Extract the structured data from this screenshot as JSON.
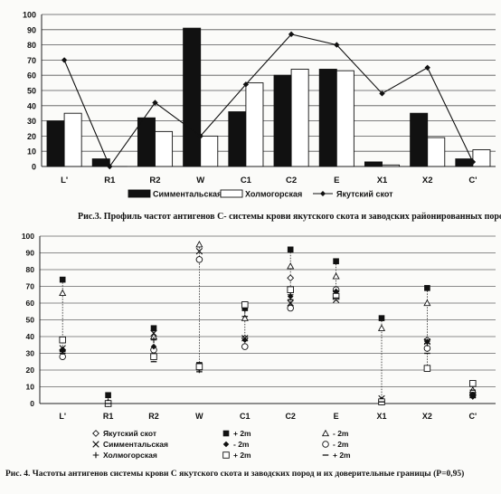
{
  "captions": {
    "fig3": "Рис.3. Профиль частот антигенов С- системы крови якутского скота и заводских районированных пород",
    "fig4": "Рис. 4. Частоты антигенов системы крови С якутского скота и заводских пород и их доверительные границы (P=0,95)"
  },
  "chart_data": [
    {
      "type": "bar",
      "categories": [
        "L'",
        "R1",
        "R2",
        "W",
        "C1",
        "C2",
        "E",
        "X1",
        "X2",
        "C'"
      ],
      "ylim": [
        0,
        100
      ],
      "yticks": [
        0,
        10,
        20,
        30,
        40,
        50,
        60,
        70,
        80,
        90,
        100
      ],
      "grid": true,
      "legend": "bottom",
      "series": [
        {
          "name": "Симментальская",
          "kind": "bar",
          "color": "#111111",
          "values": [
            30,
            5,
            32,
            91,
            36,
            60,
            64,
            3,
            35,
            5
          ]
        },
        {
          "name": "Холмогорская",
          "kind": "bar",
          "color": "#ffffff",
          "values": [
            35,
            0,
            23,
            20,
            55,
            64,
            63,
            1,
            19,
            11
          ]
        },
        {
          "name": "Якутский скот",
          "kind": "line",
          "color": "#111111",
          "marker": "diamond",
          "values": [
            70,
            0,
            42,
            20,
            54,
            87,
            80,
            48,
            65,
            3
          ]
        }
      ]
    },
    {
      "type": "scatter",
      "categories": [
        "L'",
        "R1",
        "R2",
        "W",
        "C1",
        "C2",
        "E",
        "X1",
        "X2",
        "C'"
      ],
      "ylim": [
        0,
        100
      ],
      "yticks": [
        0,
        10,
        20,
        30,
        40,
        50,
        60,
        70,
        80,
        90,
        100
      ],
      "grid": true,
      "legend": "bottom",
      "legend_labels": {
        "yak": "Якутский скот",
        "sim": "Симментальская",
        "hol": "Холмогорская",
        "sim_plus": "+ 2m",
        "sim_minus": "- 2m",
        "hol_plus": "+ 2m",
        "hol_minus": "- 2m",
        "yak_plus": "+ 2m",
        "yak_minus": "- 2m"
      },
      "series": [
        {
          "name": "Якутский скот",
          "marker": "open-diamond",
          "values": [
            32,
            0,
            29,
            86,
            39,
            75,
            67,
            2,
            38,
            5
          ]
        },
        {
          "name": "Якутский скот + 2m",
          "marker": "open-triangle",
          "values": [
            66,
            0,
            40,
            95,
            51,
            82,
            76,
            45,
            60,
            8
          ]
        },
        {
          "name": "Якутский скот - 2m",
          "marker": "open-circle",
          "values": [
            28,
            0,
            32,
            86,
            34,
            57,
            68,
            1,
            33,
            5
          ]
        },
        {
          "name": "Симментальская",
          "marker": "x",
          "values": [
            33,
            0,
            42,
            91,
            39,
            60,
            62,
            3,
            37,
            5
          ]
        },
        {
          "name": "Симментальская + 2m",
          "marker": "filled-square",
          "values": [
            74,
            5,
            45,
            23,
            57,
            92,
            85,
            51,
            69,
            5
          ]
        },
        {
          "name": "Симментальская - 2m",
          "marker": "filled-diamond",
          "values": [
            32,
            1,
            34,
            21,
            38,
            64,
            67,
            2,
            37,
            4
          ]
        },
        {
          "name": "Холмогорская",
          "marker": "plus",
          "values": [
            31,
            0,
            38,
            20,
            56,
            65,
            64,
            1,
            36,
            5
          ]
        },
        {
          "name": "Холмогорская + 2m",
          "marker": "open-square",
          "values": [
            38,
            0,
            28,
            22,
            59,
            68,
            64,
            1,
            21,
            12
          ]
        },
        {
          "name": "Холмогорская - 2m",
          "marker": "dash",
          "values": [
            30,
            0,
            25,
            19,
            52,
            62,
            63,
            1,
            30,
            8
          ]
        }
      ]
    }
  ]
}
